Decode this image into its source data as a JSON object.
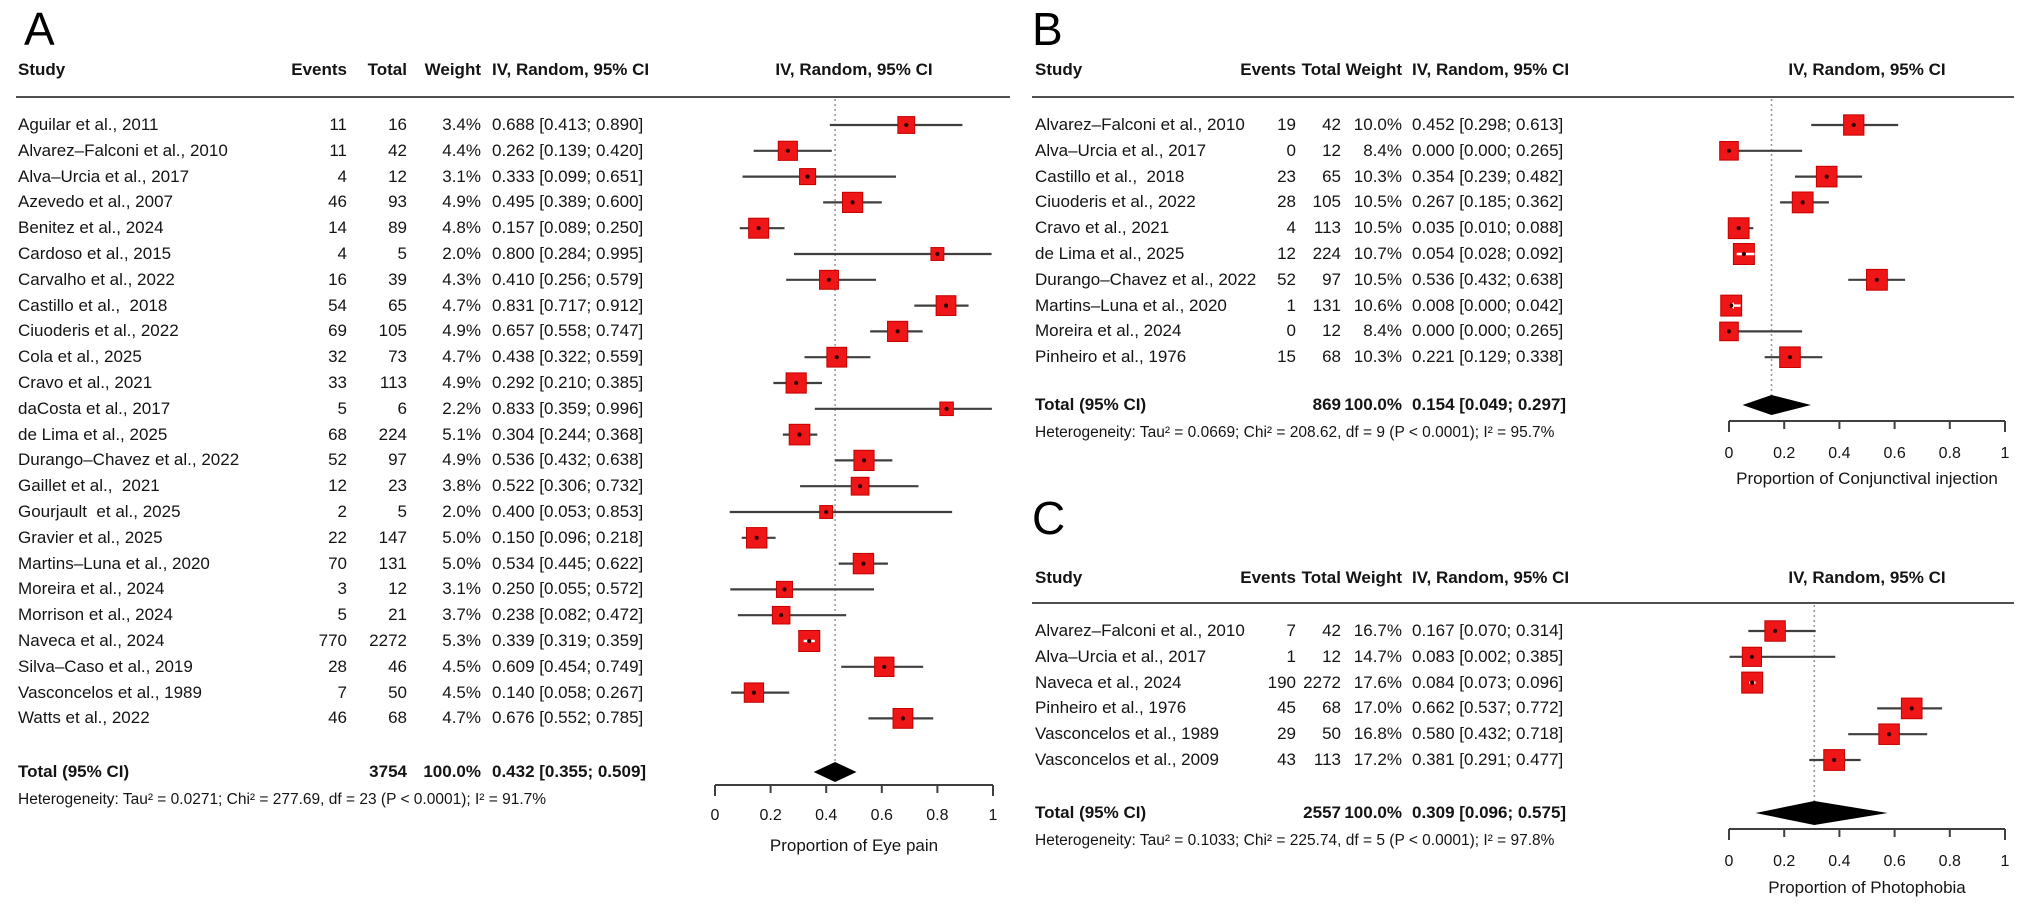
{
  "figure_labels": {
    "panel_a": "A",
    "panel_b": "B",
    "panel_c": "C"
  },
  "colors": {
    "marker_fill": "#ee1616",
    "marker_border": "#c40000",
    "marker_center_dot": "#330000",
    "ci_line": "#3f3f3f",
    "diamond": "#000000",
    "ref_line": "#9a9a9a",
    "rule": "#4f4f4f",
    "text": "#141414"
  },
  "chart_data": [
    {
      "type": "forest",
      "panel": "A",
      "columns": {
        "study": "Study",
        "events": "Events",
        "total": "Total",
        "weight": "Weight",
        "ci": "IV, Random, 95% CI"
      },
      "plot_header": "IV, Random, 95% CI",
      "studies": [
        {
          "name": "Aguilar et al., 2011",
          "events": 11,
          "total": 16,
          "weight": 3.4,
          "est": 0.688,
          "lo": 0.413,
          "hi": 0.89
        },
        {
          "name": "Alvarez–Falconi et al., 2010",
          "events": 11,
          "total": 42,
          "weight": 4.4,
          "est": 0.262,
          "lo": 0.139,
          "hi": 0.42
        },
        {
          "name": "Alva–Urcia et al., 2017",
          "events": 4,
          "total": 12,
          "weight": 3.1,
          "est": 0.333,
          "lo": 0.099,
          "hi": 0.651
        },
        {
          "name": "Azevedo et al., 2007",
          "events": 46,
          "total": 93,
          "weight": 4.9,
          "est": 0.495,
          "lo": 0.389,
          "hi": 0.6
        },
        {
          "name": "Benitez et al., 2024",
          "events": 14,
          "total": 89,
          "weight": 4.8,
          "est": 0.157,
          "lo": 0.089,
          "hi": 0.25
        },
        {
          "name": "Cardoso et al., 2015",
          "events": 4,
          "total": 5,
          "weight": 2.0,
          "est": 0.8,
          "lo": 0.284,
          "hi": 0.995
        },
        {
          "name": "Carvalho et al., 2022",
          "events": 16,
          "total": 39,
          "weight": 4.3,
          "est": 0.41,
          "lo": 0.256,
          "hi": 0.579
        },
        {
          "name": "Castillo et al.,  2018",
          "events": 54,
          "total": 65,
          "weight": 4.7,
          "est": 0.831,
          "lo": 0.717,
          "hi": 0.912
        },
        {
          "name": "Ciuoderis et al., 2022",
          "events": 69,
          "total": 105,
          "weight": 4.9,
          "est": 0.657,
          "lo": 0.558,
          "hi": 0.747
        },
        {
          "name": "Cola et al., 2025",
          "events": 32,
          "total": 73,
          "weight": 4.7,
          "est": 0.438,
          "lo": 0.322,
          "hi": 0.559
        },
        {
          "name": "Cravo et al., 2021",
          "events": 33,
          "total": 113,
          "weight": 4.9,
          "est": 0.292,
          "lo": 0.21,
          "hi": 0.385
        },
        {
          "name": "daCosta et al., 2017",
          "events": 5,
          "total": 6,
          "weight": 2.2,
          "est": 0.833,
          "lo": 0.359,
          "hi": 0.996
        },
        {
          "name": "de Lima et al., 2025",
          "events": 68,
          "total": 224,
          "weight": 5.1,
          "est": 0.304,
          "lo": 0.244,
          "hi": 0.368
        },
        {
          "name": "Durango–Chavez et al., 2022",
          "events": 52,
          "total": 97,
          "weight": 4.9,
          "est": 0.536,
          "lo": 0.432,
          "hi": 0.638
        },
        {
          "name": "Gaillet et al.,  2021",
          "events": 12,
          "total": 23,
          "weight": 3.8,
          "est": 0.522,
          "lo": 0.306,
          "hi": 0.732
        },
        {
          "name": "Gourjault  et al., 2025",
          "events": 2,
          "total": 5,
          "weight": 2.0,
          "est": 0.4,
          "lo": 0.053,
          "hi": 0.853
        },
        {
          "name": "Gravier et al., 2025",
          "events": 22,
          "total": 147,
          "weight": 5.0,
          "est": 0.15,
          "lo": 0.096,
          "hi": 0.218
        },
        {
          "name": "Martins–Luna et al., 2020",
          "events": 70,
          "total": 131,
          "weight": 5.0,
          "est": 0.534,
          "lo": 0.445,
          "hi": 0.622
        },
        {
          "name": "Moreira et al., 2024",
          "events": 3,
          "total": 12,
          "weight": 3.1,
          "est": 0.25,
          "lo": 0.055,
          "hi": 0.572
        },
        {
          "name": "Morrison et al., 2024",
          "events": 5,
          "total": 21,
          "weight": 3.7,
          "est": 0.238,
          "lo": 0.082,
          "hi": 0.472
        },
        {
          "name": "Naveca et al., 2024",
          "events": 770,
          "total": 2272,
          "weight": 5.3,
          "est": 0.339,
          "lo": 0.319,
          "hi": 0.359
        },
        {
          "name": "Silva–Caso et al., 2019",
          "events": 28,
          "total": 46,
          "weight": 4.5,
          "est": 0.609,
          "lo": 0.454,
          "hi": 0.749
        },
        {
          "name": "Vasconcelos et al., 1989",
          "events": 7,
          "total": 50,
          "weight": 4.5,
          "est": 0.14,
          "lo": 0.058,
          "hi": 0.267
        },
        {
          "name": "Watts et al., 2022",
          "events": 46,
          "total": 68,
          "weight": 4.7,
          "est": 0.676,
          "lo": 0.552,
          "hi": 0.785
        }
      ],
      "total": {
        "label": "Total (95% CI)",
        "total": 3754,
        "weight": 100.0,
        "est": 0.432,
        "lo": 0.355,
        "hi": 0.509
      },
      "heterogeneity": "Heterogeneity: Tau² = 0.0271; Chi² = 277.69, df = 23 (P < 0.0001); I² = 91.7%",
      "axis": {
        "range": [
          0,
          1
        ],
        "ticks": [
          0,
          0.2,
          0.4,
          0.6,
          0.8,
          1
        ],
        "tick_labels": [
          "0",
          "0.2",
          "0.4",
          "0.6",
          "0.8",
          "1"
        ],
        "label": "Proportion of Eye pain"
      }
    },
    {
      "type": "forest",
      "panel": "B",
      "columns": {
        "study": "Study",
        "events": "Events",
        "total": "Total",
        "weight": "Weight",
        "ci": "IV, Random, 95% CI"
      },
      "plot_header": "IV, Random, 95% CI",
      "studies": [
        {
          "name": "Alvarez–Falconi et al., 2010",
          "events": 19,
          "total": 42,
          "weight": 10.0,
          "est": 0.452,
          "lo": 0.298,
          "hi": 0.613
        },
        {
          "name": "Alva–Urcia et al., 2017",
          "events": 0,
          "total": 12,
          "weight": 8.4,
          "est": 0.0,
          "lo": 0.0,
          "hi": 0.265
        },
        {
          "name": "Castillo et al.,  2018",
          "events": 23,
          "total": 65,
          "weight": 10.3,
          "est": 0.354,
          "lo": 0.239,
          "hi": 0.482
        },
        {
          "name": "Ciuoderis et al., 2022",
          "events": 28,
          "total": 105,
          "weight": 10.5,
          "est": 0.267,
          "lo": 0.185,
          "hi": 0.362
        },
        {
          "name": "Cravo et al., 2021",
          "events": 4,
          "total": 113,
          "weight": 10.5,
          "est": 0.035,
          "lo": 0.01,
          "hi": 0.088
        },
        {
          "name": "de Lima et al., 2025",
          "events": 12,
          "total": 224,
          "weight": 10.7,
          "est": 0.054,
          "lo": 0.028,
          "hi": 0.092
        },
        {
          "name": "Durango–Chavez et al., 2022",
          "events": 52,
          "total": 97,
          "weight": 10.5,
          "est": 0.536,
          "lo": 0.432,
          "hi": 0.638
        },
        {
          "name": "Martins–Luna et al., 2020",
          "events": 1,
          "total": 131,
          "weight": 10.6,
          "est": 0.008,
          "lo": 0.0,
          "hi": 0.042,
          "arrow_left": true
        },
        {
          "name": "Moreira et al., 2024",
          "events": 0,
          "total": 12,
          "weight": 8.4,
          "est": 0.0,
          "lo": 0.0,
          "hi": 0.265
        },
        {
          "name": "Pinheiro et al., 1976",
          "events": 15,
          "total": 68,
          "weight": 10.3,
          "est": 0.221,
          "lo": 0.129,
          "hi": 0.338
        }
      ],
      "total": {
        "label": "Total (95% CI)",
        "total": 869,
        "weight": 100.0,
        "est": 0.154,
        "lo": 0.049,
        "hi": 0.297
      },
      "heterogeneity": "Heterogeneity: Tau² = 0.0669; Chi² = 208.62, df = 9 (P < 0.0001); I² = 95.7%",
      "axis": {
        "range": [
          0,
          1
        ],
        "ticks": [
          0,
          0.2,
          0.4,
          0.6,
          0.8,
          1
        ],
        "tick_labels": [
          "0",
          "0.2",
          "0.4",
          "0.6",
          "0.8",
          "1"
        ],
        "label": "Proportion of Conjunctival injection"
      }
    },
    {
      "type": "forest",
      "panel": "C",
      "columns": {
        "study": "Study",
        "events": "Events",
        "total": "Total",
        "weight": "Weight",
        "ci": "IV, Random, 95% CI"
      },
      "plot_header": "IV, Random, 95% CI",
      "studies": [
        {
          "name": "Alvarez–Falconi et al., 2010",
          "events": 7,
          "total": 42,
          "weight": 16.7,
          "est": 0.167,
          "lo": 0.07,
          "hi": 0.314
        },
        {
          "name": "Alva–Urcia et al., 2017",
          "events": 1,
          "total": 12,
          "weight": 14.7,
          "est": 0.083,
          "lo": 0.002,
          "hi": 0.385
        },
        {
          "name": "Naveca et al., 2024",
          "events": 190,
          "total": 2272,
          "weight": 17.6,
          "est": 0.084,
          "lo": 0.073,
          "hi": 0.096
        },
        {
          "name": "Pinheiro et al., 1976",
          "events": 45,
          "total": 68,
          "weight": 17.0,
          "est": 0.662,
          "lo": 0.537,
          "hi": 0.772
        },
        {
          "name": "Vasconcelos et al., 1989",
          "events": 29,
          "total": 50,
          "weight": 16.8,
          "est": 0.58,
          "lo": 0.432,
          "hi": 0.718
        },
        {
          "name": "Vasconcelos et al., 2009",
          "events": 43,
          "total": 113,
          "weight": 17.2,
          "est": 0.381,
          "lo": 0.291,
          "hi": 0.477
        }
      ],
      "total": {
        "label": "Total (95% CI)",
        "total": 2557,
        "weight": 100.0,
        "est": 0.309,
        "lo": 0.096,
        "hi": 0.575
      },
      "heterogeneity": "Heterogeneity: Tau² = 0.1033; Chi² = 225.74, df = 5 (P < 0.0001); I² = 97.8%",
      "axis": {
        "range": [
          0,
          1
        ],
        "ticks": [
          0,
          0.2,
          0.4,
          0.6,
          0.8,
          1
        ],
        "tick_labels": [
          "0",
          "0.2",
          "0.4",
          "0.6",
          "0.8",
          "1"
        ],
        "label": "Proportion of Photophobia"
      }
    }
  ]
}
